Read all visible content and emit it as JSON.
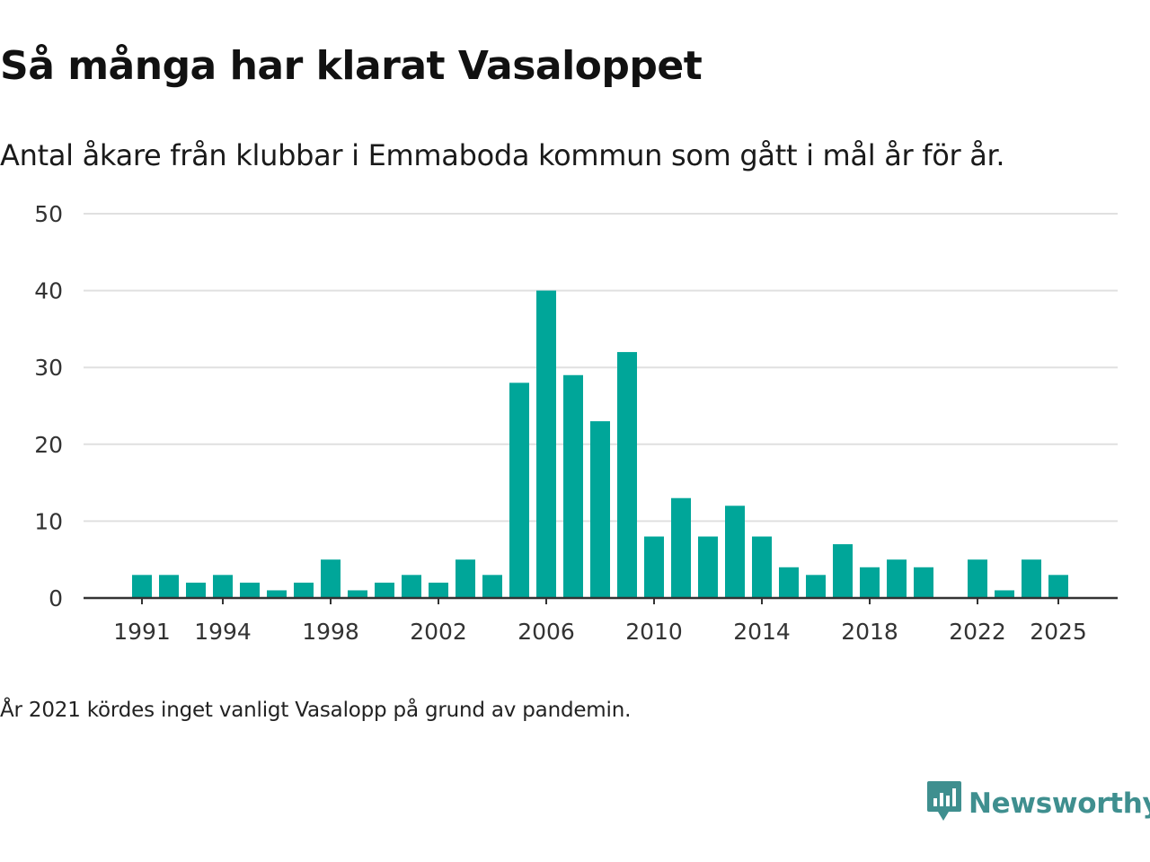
{
  "header": {
    "title": "Så många har klarat Vasaloppet",
    "subtitle": "Antal åkare från klubbar i Emmaboda kommun som gått i mål år för år."
  },
  "footnote": "År 2021 kördes inget vanligt Vasalopp på grund av pandemin.",
  "brand": {
    "name": "Newsworthy",
    "icon": "newsworthy-logo-icon",
    "color": "#3f8f8f"
  },
  "colors": {
    "bar": "#00a699",
    "grid": "#e0e0e0",
    "axis": "#333333"
  },
  "chart_data": {
    "type": "bar",
    "title": "Så många har klarat Vasaloppet",
    "xlabel": "",
    "ylabel": "",
    "ylim": [
      0,
      50
    ],
    "yticks": [
      0,
      10,
      20,
      30,
      40,
      50
    ],
    "xticks": [
      1991,
      1994,
      1998,
      2002,
      2006,
      2010,
      2014,
      2018,
      2022,
      2025
    ],
    "grid": true,
    "categories": [
      1991,
      1992,
      1993,
      1994,
      1995,
      1996,
      1997,
      1998,
      1999,
      2000,
      2001,
      2002,
      2003,
      2004,
      2005,
      2006,
      2007,
      2008,
      2009,
      2010,
      2011,
      2012,
      2013,
      2014,
      2015,
      2016,
      2017,
      2018,
      2019,
      2020,
      2021,
      2022,
      2023,
      2024,
      2025
    ],
    "values": [
      3,
      3,
      2,
      3,
      2,
      1,
      2,
      5,
      1,
      2,
      3,
      2,
      5,
      3,
      28,
      40,
      29,
      23,
      32,
      8,
      13,
      8,
      12,
      8,
      4,
      3,
      7,
      4,
      5,
      4,
      0,
      5,
      1,
      5,
      3
    ]
  }
}
